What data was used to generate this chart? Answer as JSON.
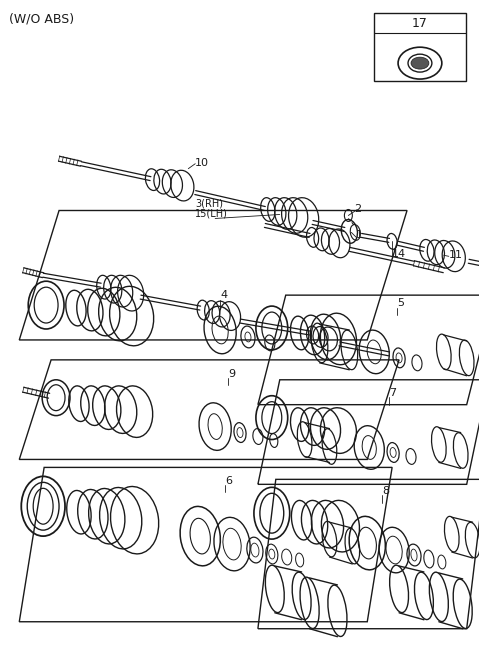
{
  "bg": "#ffffff",
  "lc": "#1a1a1a",
  "title": "(W/O ABS)",
  "fig_w": 4.8,
  "fig_h": 6.56,
  "dpi": 100
}
